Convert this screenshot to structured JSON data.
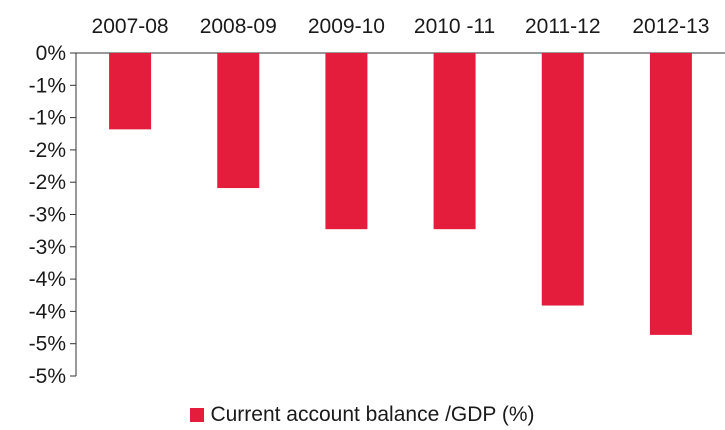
{
  "chart_data": {
    "type": "bar",
    "categories": [
      "2007-08",
      "2008-09",
      "2009-10",
      "2010 -11",
      "2011-12",
      "2012-13"
    ],
    "series": [
      {
        "name": "Current account balance /GDP (%)",
        "values": [
          -1.3,
          -2.3,
          -3.0,
          -3.0,
          -4.3,
          -4.8
        ],
        "color": "#e41d3d"
      }
    ],
    "y_ticks": [
      "0%",
      "-1%",
      "-1%",
      "-2%",
      "-2%",
      "-3%",
      "-3%",
      "-4%",
      "-4%",
      "-5%",
      "-5%"
    ],
    "ylim": [
      -5.5,
      0
    ],
    "x_axis_position": "top",
    "legend_position": "bottom",
    "grid": false,
    "title": "",
    "xlabel": "",
    "ylabel": ""
  }
}
